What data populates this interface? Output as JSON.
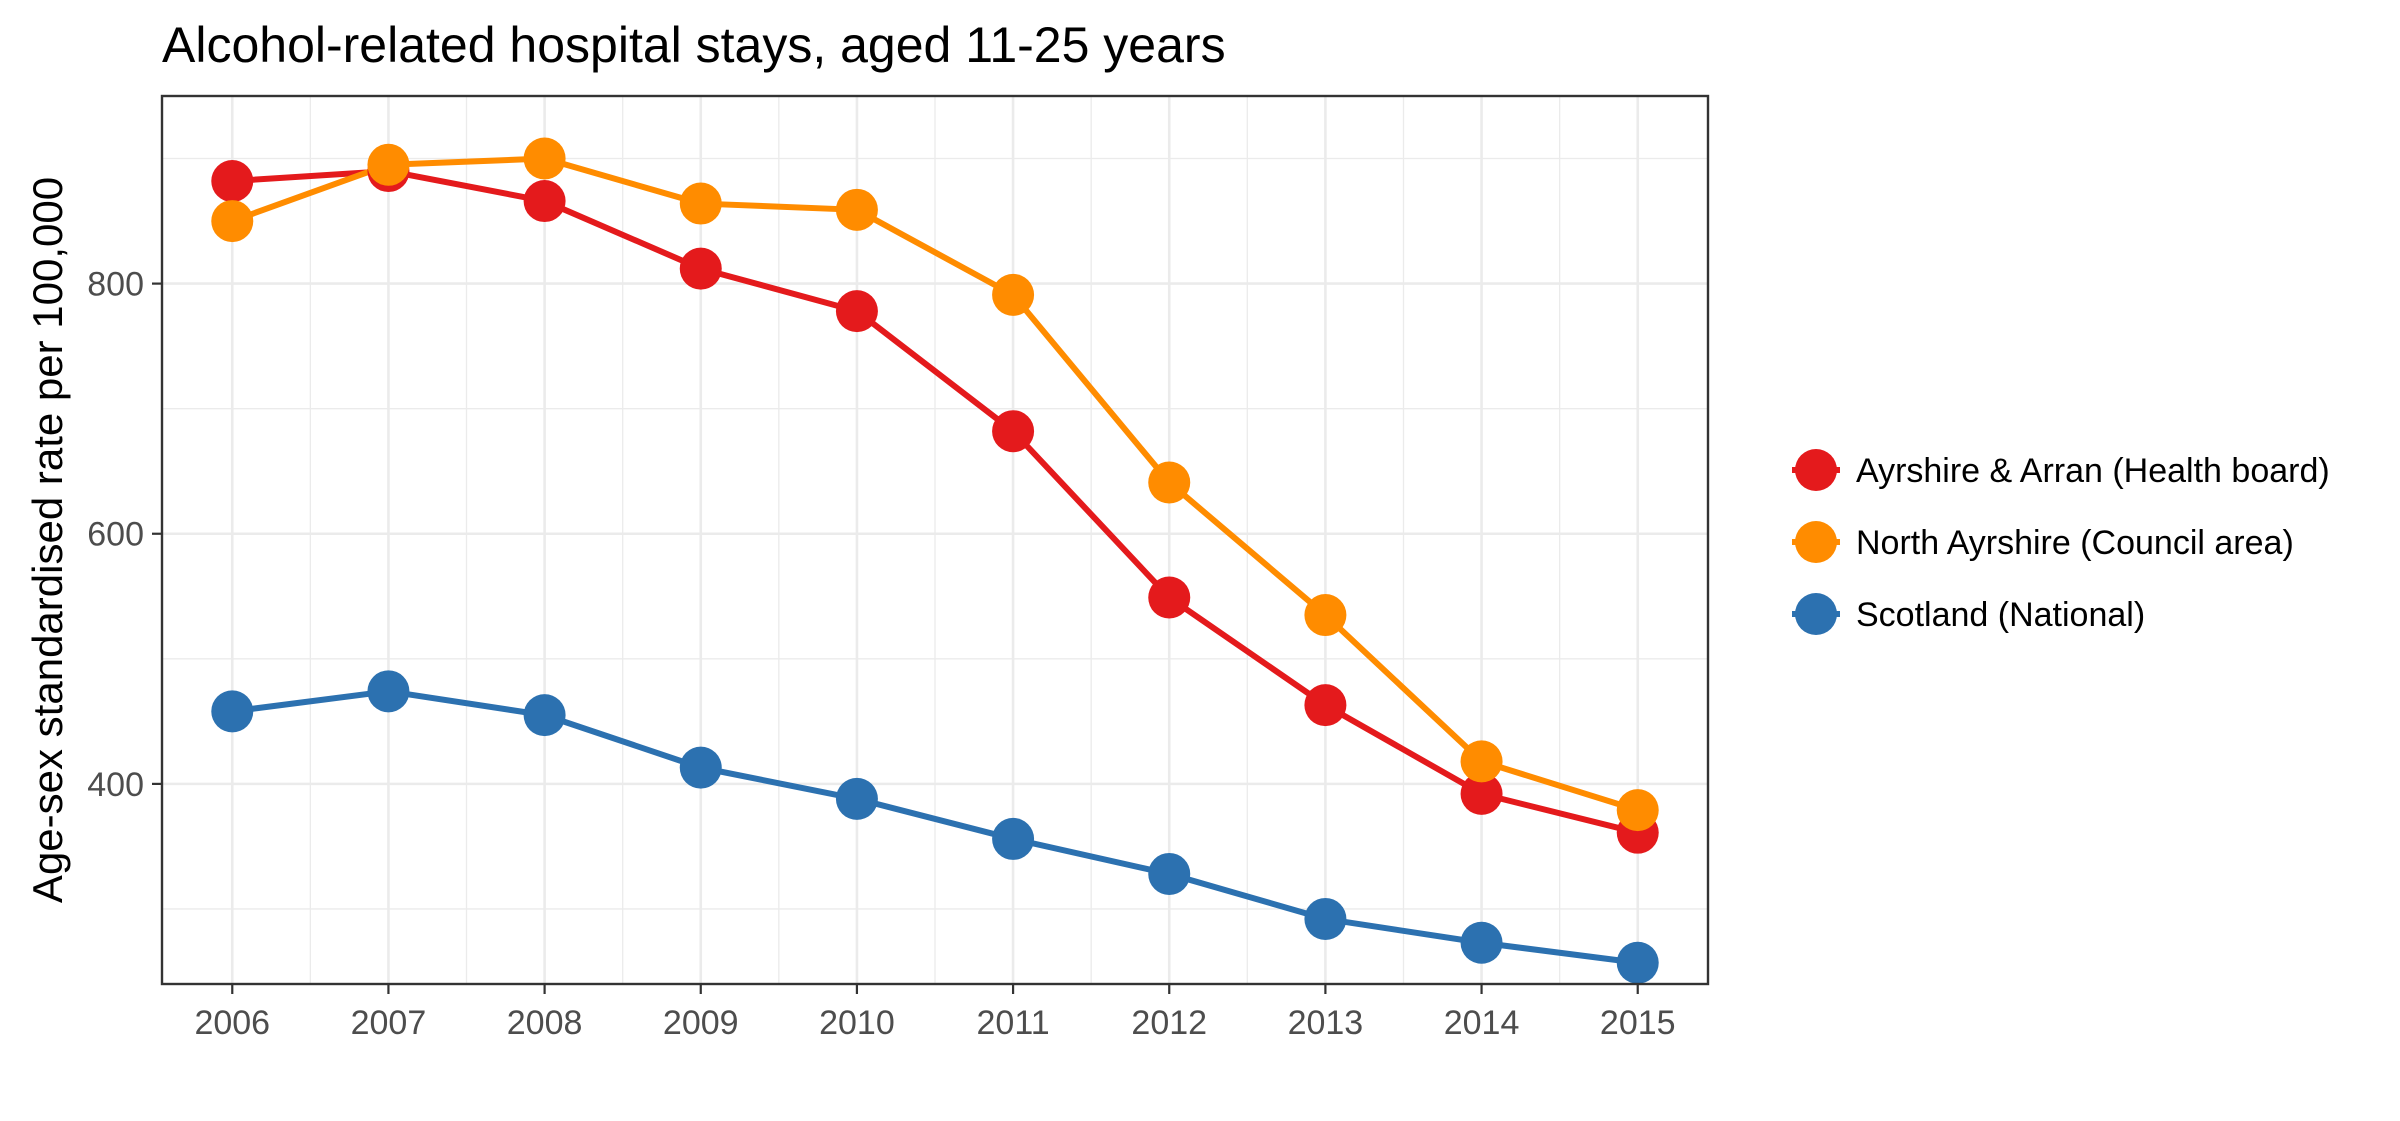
{
  "chart_data": {
    "type": "line",
    "title": "Alcohol-related hospital stays, aged 11-25 years",
    "xlabel": "",
    "ylabel": "Age-sex standardised rate per 100,000",
    "x": [
      2006,
      2007,
      2008,
      2009,
      2010,
      2011,
      2012,
      2013,
      2014,
      2015
    ],
    "x_tick_labels": [
      "2006",
      "2007",
      "2008",
      "2009",
      "2010",
      "2011",
      "2012",
      "2013",
      "2014",
      "2015"
    ],
    "y_ticks": [
      400,
      600,
      800
    ],
    "y_tick_labels": [
      "400",
      "600",
      "800"
    ],
    "xlim": [
      2005.55,
      2015.45
    ],
    "ylim": [
      240,
      950
    ],
    "grid": true,
    "legend_position": "right",
    "series": [
      {
        "name": "Ayrshire & Arran (Health board)",
        "color": "#e41a1c",
        "values": [
          882,
          890,
          866,
          812,
          778,
          682,
          549,
          463,
          392,
          361
        ]
      },
      {
        "name": "North Ayrshire (Council area)",
        "color": "#ff8c00",
        "values": [
          850,
          895,
          900,
          864,
          859,
          791,
          641,
          535,
          418,
          379
        ]
      },
      {
        "name": "Scotland (National)",
        "color": "#2c71b0",
        "values": [
          458,
          474,
          455,
          413,
          388,
          356,
          328,
          292,
          273,
          257
        ]
      }
    ]
  }
}
